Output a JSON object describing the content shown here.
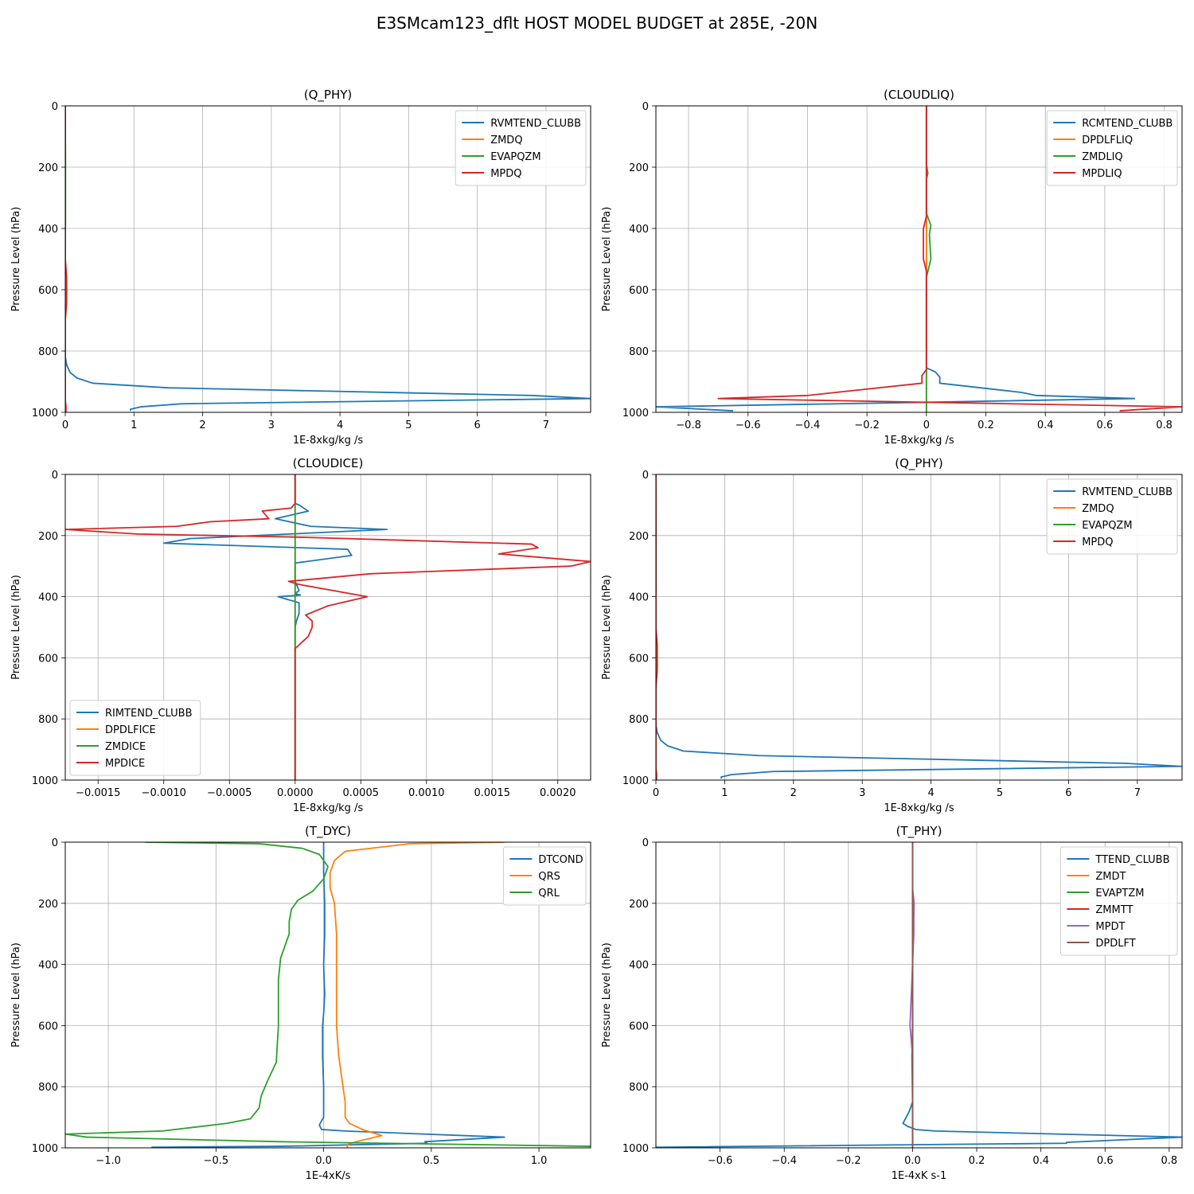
{
  "suptitle": "E3SMcam123_dflt HOST MODEL BUDGET at 285E, -20N",
  "colors": {
    "blue": "#1f77b4",
    "orange": "#ff7f0e",
    "green": "#2ca02c",
    "red": "#d62728",
    "purple": "#9467bd",
    "brown": "#8c564b",
    "grid": "#b0b0b0"
  },
  "chart_data": [
    {
      "type": "line",
      "title": "(Q_PHY)",
      "xlabel": "1E-8xkg/kg /s",
      "ylabel": "Pressure Level (hPa)",
      "xlim": [
        0,
        7.65
      ],
      "ylim": [
        1000,
        0
      ],
      "xticks": [
        0,
        1,
        2,
        3,
        4,
        5,
        6,
        7
      ],
      "yticks": [
        0,
        200,
        400,
        600,
        800,
        1000
      ],
      "grid": true,
      "legend_position": "upper-right",
      "series": [
        {
          "name": "RVMTEND_CLUBB",
          "color": "#1f77b4",
          "x": [
            0,
            0,
            0,
            0.02,
            0.07,
            0.17,
            0.4,
            1.5,
            6.8,
            7.65,
            1.7,
            1.1,
            0.95,
            0.95
          ],
          "y": [
            0,
            400,
            820,
            845,
            870,
            888,
            905,
            920,
            945,
            955,
            972,
            982,
            990,
            995
          ]
        },
        {
          "name": "ZMDQ",
          "color": "#ff7f0e",
          "x": [
            0,
            0
          ],
          "y": [
            0,
            1000
          ]
        },
        {
          "name": "EVAPQZM",
          "color": "#2ca02c",
          "x": [
            0,
            0.003,
            0.003,
            0
          ],
          "y": [
            0,
            200,
            380,
            420
          ]
        },
        {
          "name": "MPDQ",
          "color": "#d62728",
          "x": [
            0,
            0,
            0.02,
            0.02,
            0,
            0,
            0.01,
            0.01
          ],
          "y": [
            0,
            500,
            560,
            640,
            700,
            960,
            980,
            1000
          ]
        }
      ]
    },
    {
      "type": "line",
      "title": "(CLOUDLIQ)",
      "xlabel": "1E-8xkg/kg /s",
      "ylabel": "Pressure Level (hPa)",
      "xlim": [
        -0.91,
        0.86
      ],
      "ylim": [
        1000,
        0
      ],
      "xticks": [
        -0.8,
        -0.6,
        -0.4,
        -0.2,
        0.0,
        0.2,
        0.4,
        0.6,
        0.8
      ],
      "yticks": [
        0,
        200,
        400,
        600,
        800,
        1000
      ],
      "grid": true,
      "legend_position": "upper-right",
      "series": [
        {
          "name": "RCMTEND_CLUBB",
          "color": "#1f77b4",
          "x": [
            0,
            0,
            0.03,
            0.045,
            0.045,
            0.32,
            0.37,
            0.7,
            -0.05,
            -0.91,
            -0.65
          ],
          "y": [
            0,
            855,
            868,
            885,
            905,
            935,
            945,
            955,
            968,
            982,
            995
          ]
        },
        {
          "name": "DPDLFLIQ",
          "color": "#ff7f0e",
          "x": [
            0,
            0
          ],
          "y": [
            0,
            1000
          ]
        },
        {
          "name": "ZMDLIQ",
          "color": "#2ca02c",
          "x": [
            0,
            0,
            0.005,
            0,
            0,
            0.015,
            0.01,
            0.015,
            0,
            0
          ],
          "y": [
            0,
            190,
            220,
            240,
            350,
            390,
            420,
            500,
            560,
            1000
          ]
        },
        {
          "name": "MPDLIQ",
          "color": "#d62728",
          "x": [
            0,
            0,
            -0.01,
            -0.01,
            0,
            0,
            -0.015,
            -0.015,
            -0.4,
            -0.7,
            0.05,
            0.86,
            0.65
          ],
          "y": [
            0,
            360,
            400,
            500,
            540,
            860,
            880,
            905,
            945,
            955,
            968,
            982,
            995
          ]
        }
      ]
    },
    {
      "type": "line",
      "title": "(CLOUDICE)",
      "xlabel": "1E-8xkg/kg /s",
      "ylabel": "Pressure Level (hPa)",
      "xlim": [
        -0.00175,
        0.00225
      ],
      "ylim": [
        1000,
        0
      ],
      "xticks": [
        -0.0015,
        -0.001,
        -0.0005,
        0.0,
        0.0005,
        0.001,
        0.0015,
        0.002
      ],
      "xticklabels": [
        "−0.0015",
        "−0.0010",
        "−0.0005",
        "0.0000",
        "0.0005",
        "0.0010",
        "0.0015",
        "0.0020"
      ],
      "yticks": [
        0,
        200,
        400,
        600,
        800,
        1000
      ],
      "grid": true,
      "legend_position": "lower-left",
      "series": [
        {
          "name": "RIMTEND_CLUBB",
          "color": "#1f77b4",
          "x": [
            0,
            0,
            3e-05,
            0.0001,
            -0.00015,
            0.00012,
            0.0007,
            -0.0008,
            -0.001,
            0.0004,
            0.00043,
            0,
            0,
            3e-05,
            0,
            4e-05,
            -0.00013,
            3e-05,
            3e-05,
            1e-05,
            0,
            0
          ],
          "y": [
            0,
            95,
            100,
            120,
            145,
            170,
            180,
            210,
            225,
            245,
            265,
            290,
            350,
            380,
            390,
            395,
            400,
            420,
            455,
            480,
            500,
            1000
          ]
        },
        {
          "name": "DPDLFICE",
          "color": "#ff7f0e",
          "x": [
            0,
            0
          ],
          "y": [
            0,
            1000
          ]
        },
        {
          "name": "ZMDICE",
          "color": "#2ca02c",
          "x": [
            0,
            0
          ],
          "y": [
            0,
            1000
          ]
        },
        {
          "name": "MPDICE",
          "color": "#d62728",
          "x": [
            0,
            0,
            -3e-05,
            -0.00025,
            -0.0002,
            -0.00065,
            -0.0009,
            -0.00175,
            -0.0012,
            0,
            0.0018,
            0.00185,
            0.00155,
            0.00225,
            0.0021,
            0.00057,
            -5e-05,
            3e-05,
            0.00055,
            0.00025,
            8e-05,
            0.00013,
            0.00013,
            0.0001,
            0,
            0
          ],
          "y": [
            0,
            95,
            110,
            120,
            145,
            155,
            170,
            180,
            195,
            205,
            228,
            240,
            260,
            285,
            300,
            325,
            350,
            360,
            400,
            430,
            460,
            480,
            500,
            530,
            570,
            1000
          ]
        }
      ]
    },
    {
      "type": "line",
      "title": "(Q_PHY)",
      "xlabel": "1E-8xkg/kg /s",
      "ylabel": "Pressure Level (hPa)",
      "xlim": [
        0,
        7.65
      ],
      "ylim": [
        1000,
        0
      ],
      "xticks": [
        0,
        1,
        2,
        3,
        4,
        5,
        6,
        7
      ],
      "yticks": [
        0,
        200,
        400,
        600,
        800,
        1000
      ],
      "grid": true,
      "legend_position": "upper-right",
      "series": [
        {
          "name": "RVMTEND_CLUBB",
          "color": "#1f77b4",
          "x": [
            0,
            0,
            0,
            0.02,
            0.07,
            0.17,
            0.4,
            1.5,
            6.8,
            7.65,
            1.7,
            1.1,
            0.95,
            0.95
          ],
          "y": [
            0,
            400,
            820,
            845,
            870,
            888,
            905,
            920,
            945,
            955,
            972,
            982,
            990,
            995
          ]
        },
        {
          "name": "ZMDQ",
          "color": "#ff7f0e",
          "x": [
            0,
            0
          ],
          "y": [
            0,
            1000
          ]
        },
        {
          "name": "EVAPQZM",
          "color": "#2ca02c",
          "x": [
            0,
            0.003,
            0.003,
            0
          ],
          "y": [
            0,
            200,
            380,
            420
          ]
        },
        {
          "name": "MPDQ",
          "color": "#d62728",
          "x": [
            0,
            0,
            0.02,
            0.02,
            0,
            0,
            0.01,
            0.01
          ],
          "y": [
            0,
            500,
            560,
            640,
            700,
            960,
            980,
            1000
          ]
        }
      ]
    },
    {
      "type": "line",
      "title": "(T_DYC)",
      "xlabel": "1E-4xK/s",
      "ylabel": "Pressure Level (hPa)",
      "xlim": [
        -1.2,
        1.24
      ],
      "ylim": [
        1000,
        0
      ],
      "xticks": [
        -1.0,
        -0.5,
        0.0,
        0.5,
        1.0
      ],
      "xticklabels": [
        "−1.0",
        "−0.5",
        "0.0",
        "0.5",
        "1.0"
      ],
      "yticks": [
        0,
        200,
        400,
        600,
        800,
        1000
      ],
      "grid": true,
      "legend_position": "upper-right",
      "series": [
        {
          "name": "DTCOND",
          "color": "#1f77b4",
          "x": [
            0,
            0,
            0.005,
            0.005,
            0,
            0.005,
            0,
            -0.005,
            -0.005,
            0,
            0,
            -0.02,
            -0.01,
            0.1,
            0.84,
            0.47,
            0.48,
            -0.2,
            -0.8
          ],
          "y": [
            0,
            100,
            200,
            300,
            400,
            500,
            560,
            600,
            700,
            800,
            900,
            925,
            940,
            945,
            965,
            980,
            985,
            995,
            998
          ]
        },
        {
          "name": "QRS",
          "color": "#ff7f0e",
          "x": [
            0.84,
            0.4,
            0.1,
            0.05,
            0.03,
            0.03,
            0.05,
            0.06,
            0.06,
            0.06,
            0.06,
            0.07,
            0.09,
            0.1,
            0.1,
            0.12,
            0.18,
            0.27,
            0.15,
            0.11,
            0.11
          ],
          "y": [
            0,
            5,
            30,
            60,
            100,
            150,
            200,
            300,
            400,
            500,
            600,
            700,
            800,
            850,
            900,
            920,
            940,
            960,
            980,
            990,
            1000
          ]
        },
        {
          "name": "QRL",
          "color": "#2ca02c",
          "x": [
            -0.83,
            -0.3,
            -0.1,
            -0.02,
            0.02,
            0.0,
            -0.05,
            -0.12,
            -0.15,
            -0.16,
            -0.16,
            -0.2,
            -0.21,
            -0.21,
            -0.21,
            -0.22,
            -0.26,
            -0.29,
            -0.3,
            -0.34,
            -0.45,
            -0.75,
            -1.2,
            -1.1,
            -0.2,
            1.24
          ],
          "y": [
            0,
            5,
            20,
            40,
            80,
            120,
            160,
            190,
            220,
            260,
            300,
            380,
            450,
            500,
            600,
            720,
            780,
            830,
            870,
            905,
            920,
            945,
            955,
            965,
            980,
            995
          ]
        }
      ]
    },
    {
      "type": "line",
      "title": "(T_PHY)",
      "xlabel": "1E-4xK s-1",
      "ylabel": "Pressure Level (hPa)",
      "xlim": [
        -0.8,
        0.84
      ],
      "ylim": [
        1000,
        0
      ],
      "xticks": [
        -0.6,
        -0.4,
        -0.2,
        0.0,
        0.2,
        0.4,
        0.6,
        0.8
      ],
      "xticklabels": [
        "−0.6",
        "−0.4",
        "−0.2",
        "0.0",
        "0.2",
        "0.4",
        "0.6",
        "0.8"
      ],
      "yticks": [
        0,
        200,
        400,
        600,
        800,
        1000
      ],
      "grid": true,
      "legend_position": "upper-right",
      "series": [
        {
          "name": "TTEND_CLUBB",
          "color": "#1f77b4",
          "x": [
            0,
            0,
            0,
            -0.002,
            0,
            -0.01,
            -0.03,
            -0.015,
            0.01,
            0.07,
            0.84,
            0.48,
            0.48,
            -0.8
          ],
          "y": [
            0,
            300,
            600,
            700,
            850,
            880,
            920,
            930,
            940,
            945,
            965,
            982,
            985,
            998
          ]
        },
        {
          "name": "ZMDT",
          "color": "#ff7f0e",
          "x": [
            0,
            0
          ],
          "y": [
            0,
            1000
          ]
        },
        {
          "name": "EVAPTZM",
          "color": "#2ca02c",
          "x": [
            0,
            0
          ],
          "y": [
            0,
            1000
          ]
        },
        {
          "name": "ZMMTT",
          "color": "#d62728",
          "x": [
            0,
            0
          ],
          "y": [
            0,
            1000
          ]
        },
        {
          "name": "MPDT",
          "color": "#9467bd",
          "x": [
            0,
            0,
            0.005,
            0.004,
            0.004,
            0,
            -0.004,
            -0.008,
            -0.004,
            0,
            0
          ],
          "y": [
            0,
            150,
            200,
            250,
            300,
            400,
            500,
            600,
            650,
            700,
            1000
          ]
        },
        {
          "name": "DPDLFT",
          "color": "#8c564b",
          "x": [
            0,
            0
          ],
          "y": [
            0,
            1000
          ]
        }
      ]
    }
  ]
}
